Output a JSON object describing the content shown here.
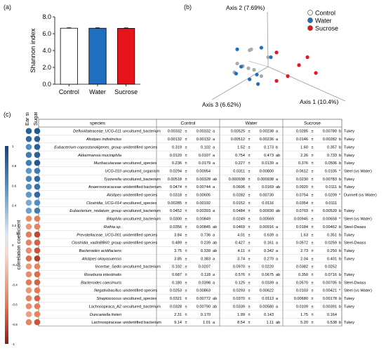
{
  "panels": {
    "a": "(a)",
    "b": "(b)",
    "c": "(c)"
  },
  "colors": {
    "control": "#ffffff",
    "water": "#1f6fc1",
    "sucrose": "#e8141c",
    "pcoa_control": "#aaaaaa"
  },
  "chart_data": [
    {
      "type": "bar",
      "title": "",
      "xlabel": "",
      "ylabel": "Shannon index",
      "categories": [
        "Control",
        "Water",
        "Sucrose"
      ],
      "values": [
        6.65,
        6.65,
        6.63
      ],
      "errors": [
        0.06,
        0.06,
        0.06
      ],
      "ylim": [
        0,
        8
      ],
      "yticks": [
        "0.0",
        "2.0",
        "4.0",
        "6.0",
        "8.0"
      ],
      "colors": [
        "#ffffff",
        "#1f6fc1",
        "#e8141c"
      ]
    },
    {
      "type": "scatter",
      "title": "",
      "axes": [
        "Axis 1 (10.4%)",
        "Axis 2 (7.69%)",
        "Axis 3 (6.62%)"
      ],
      "legend": {
        "position": "top-right",
        "items": [
          "Control",
          "Water",
          "Sucrose"
        ]
      },
      "series": [
        {
          "name": "Control",
          "color": "#aaaaaa",
          "points": [
            [
              -0.3,
              0.55
            ],
            [
              -0.33,
              0.52
            ],
            [
              -0.55,
              0.1
            ],
            [
              -0.45,
              0.02
            ],
            [
              -0.35,
              -0.05
            ],
            [
              -0.25,
              -0.1
            ],
            [
              -0.6,
              -0.18
            ],
            [
              -0.12,
              -0.3
            ],
            [
              0.0,
              0.3
            ]
          ]
        },
        {
          "name": "Water",
          "color": "#1f6fc1",
          "points": [
            [
              -0.55,
              0.55
            ],
            [
              -0.12,
              0.6
            ],
            [
              -0.2,
              -0.25
            ],
            [
              -0.33,
              -0.4
            ],
            [
              -0.18,
              -0.55
            ],
            [
              -0.48,
              0.0
            ],
            [
              -0.57,
              -0.22
            ],
            [
              0.05,
              0.3
            ]
          ]
        },
        {
          "name": "Sucrose",
          "color": "#e8141c",
          "points": [
            [
              0.15,
              0.45
            ],
            [
              0.7,
              0.3
            ],
            [
              0.55,
              0.05
            ],
            [
              0.85,
              -0.2
            ],
            [
              0.35,
              -0.3
            ],
            [
              0.15,
              -0.45
            ]
          ]
        }
      ]
    },
    {
      "type": "table",
      "colorbar": {
        "title": "correlation coefficient",
        "ticks": [
          "1",
          "0.8",
          "0.6",
          "0.4",
          "0.2",
          "0",
          "-0.2",
          "-0.4",
          "-0.6",
          "-0.8",
          "-1"
        ],
        "range": [
          -1,
          1
        ]
      },
      "corr_columns": [
        "Ear swelling",
        "Sugar intake"
      ],
      "headers": [
        "species",
        "Control",
        "Water",
        "Sucrose"
      ],
      "rows": [
        {
          "name": "Defluviitaleaceae_UCG-011",
          "italic": true,
          "suffix": "uncultured_bacterium",
          "c": [
            "0.00332",
            "0.00332",
            "a"
          ],
          "w": [
            "0.00525",
            "0.00238",
            "a"
          ],
          "s": [
            "0.0285",
            "0.00780",
            "b"
          ],
          "test": "Tukey",
          "corr": [
            0.85,
            0.9
          ]
        },
        {
          "name": "Alistipes indistinctus",
          "italic": true,
          "suffix": "",
          "c": [
            "0.00132",
            "0.00132",
            "a"
          ],
          "w": [
            "0.00512",
            "0.00236",
            "a"
          ],
          "s": [
            "0.0146",
            "0.00282",
            "b"
          ],
          "test": "Tukey",
          "corr": [
            0.8,
            0.85
          ]
        },
        {
          "name": "Eubacterium coprostanoligenes_group",
          "italic": true,
          "suffix": "unidentified species",
          "c": [
            "0.319",
            "0.102",
            "a"
          ],
          "w": [
            "1.52",
            "0.173",
            "b"
          ],
          "s": [
            "1.60",
            "0.357",
            "b"
          ],
          "test": "Tukey",
          "corr": [
            0.6,
            0.85
          ]
        },
        {
          "name": "Akkermansia muciniphila",
          "italic": true,
          "suffix": "",
          "c": [
            "0.0120",
            "0.0107",
            "a"
          ],
          "w": [
            "0.754",
            "0.473",
            "ab"
          ],
          "s": [
            "2.26",
            "0.733",
            "b"
          ],
          "test": "Tukey",
          "corr": [
            0.7,
            0.85
          ]
        },
        {
          "name": "Muribaculaceae",
          "italic": true,
          "suffix": "uncultured_species",
          "c": [
            "0.236",
            "0.0179",
            "a"
          ],
          "w": [
            "0.227",
            "0.0139",
            "a"
          ],
          "s": [
            "0.376",
            "0.0506",
            "b"
          ],
          "test": "Tukey",
          "corr": [
            0.7,
            0.9
          ]
        },
        {
          "name": "UCG-010",
          "italic": true,
          "suffix": "uncultured_organism",
          "c": [
            "0.0294",
            "0.00954",
            ""
          ],
          "w": [
            "0.0311",
            "0.00800",
            ""
          ],
          "s": [
            "0.0612",
            "0.0105",
            "*"
          ],
          "test": "Steel (vs Water)",
          "corr": [
            0.55,
            0.7
          ]
        },
        {
          "name": "Tyzzerella",
          "italic": true,
          "suffix": "uncultured_bacterium",
          "c": [
            "0.00518",
            "0.00328",
            "ab"
          ],
          "w": [
            "0.000938",
            "0.000938",
            "a"
          ],
          "s": [
            "0.0230",
            "0.00783",
            "b"
          ],
          "test": "Tukey",
          "corr": [
            0.65,
            0.8
          ]
        },
        {
          "name": "Anaerovoracaceae",
          "italic": false,
          "suffix": "unidentified bacterium",
          "c": [
            "0.0474",
            "0.00744",
            "a"
          ],
          "w": [
            "0.0606",
            "0.0169",
            "ab"
          ],
          "s": [
            "0.0920",
            "0.0111",
            "b"
          ],
          "test": "Tukey",
          "corr": [
            0.6,
            0.75
          ]
        },
        {
          "name": "Alistipes",
          "italic": true,
          "suffix": "unidentified species",
          "c": [
            "0.0318",
            "0.00605",
            ""
          ],
          "w": [
            "0.0282",
            "0.00730",
            ""
          ],
          "s": [
            "0.0754",
            "0.0209",
            "*"
          ],
          "test": "Dunnett (vs Water)",
          "corr": [
            0.55,
            0.8
          ]
        },
        {
          "name": "Clostridia_UCG-014",
          "italic": true,
          "suffix": "uncultured_species",
          "c": [
            "0.00285",
            "0.00192",
            ""
          ],
          "w": [
            "0.0152",
            "0.0116",
            ""
          ],
          "s": [
            "0.0354",
            "0.0111",
            ""
          ],
          "test": "",
          "corr": [
            0.45,
            0.6
          ]
        },
        {
          "name": "Eubacterium_nodatum_group",
          "italic": true,
          "suffix": "uncultured_bacterium",
          "c": [
            "0.0452",
            "0.00393",
            "a"
          ],
          "w": [
            "0.0484",
            "0.00930",
            "ab"
          ],
          "s": [
            "0.0703",
            "0.00520",
            "b"
          ],
          "test": "Tukey",
          "corr": [
            0.5,
            0.7
          ]
        },
        {
          "name": "Bilophila",
          "italic": true,
          "suffix": "uncultured_bacterium",
          "c": [
            "0.0300",
            "0.00849",
            ""
          ],
          "w": [
            "0.0249",
            "0.00569",
            ""
          ],
          "s": [
            "0.00945",
            "0.00658",
            "*"
          ],
          "test": "Steel (vs Water)",
          "corr": [
            -0.5,
            -0.6
          ]
        },
        {
          "name": "Rothia sp.",
          "italic": true,
          "suffix": "",
          "c": [
            "0.0356",
            "0.00845",
            "ab"
          ],
          "w": [
            "0.0469",
            "0.00916",
            "a"
          ],
          "s": [
            "0.0184",
            "0.00462",
            "b"
          ],
          "test": "Steel-Dwass",
          "corr": [
            -0.45,
            -0.55
          ]
        },
        {
          "name": "Prevotellaceae_UCG-001",
          "italic": true,
          "suffix": "unidentified species",
          "c": [
            "3.84",
            "0.736",
            "a"
          ],
          "w": [
            "4.01",
            "0.639",
            "a"
          ],
          "s": [
            "1.63",
            "0.351",
            "b"
          ],
          "test": "Tukey",
          "corr": [
            -0.6,
            -0.8
          ]
        },
        {
          "name": "Clostridia_vadinBB60_group",
          "italic": true,
          "suffix": "unidentified species",
          "c": [
            "0.489",
            "0.239",
            "ab"
          ],
          "w": [
            "0.427",
            "0.161",
            "a"
          ],
          "s": [
            "0.0572",
            "0.0259",
            "b"
          ],
          "test": "Steel-Dwass",
          "corr": [
            -0.55,
            -0.7
          ]
        },
        {
          "name": "Bacteroides acidifaciens",
          "italic": true,
          "suffix": "",
          "c": [
            "3.75",
            "0.339",
            "ab"
          ],
          "w": [
            "4.11",
            "0.342",
            "a"
          ],
          "s": [
            "2.73",
            "0.250",
            "b"
          ],
          "test": "Tukey",
          "corr": [
            -0.5,
            -0.75
          ]
        },
        {
          "name": "Alistipes okayasuensis",
          "italic": true,
          "suffix": "",
          "c": [
            "3.85",
            "0.383",
            "a"
          ],
          "w": [
            "3.74",
            "0.270",
            "a"
          ],
          "s": [
            "2.04",
            "0.401",
            "b"
          ],
          "test": "Tukey",
          "corr": [
            -0.65,
            -0.85
          ]
        },
        {
          "name": "Incertae_Sedis",
          "italic": true,
          "suffix": "uncultured_bacterium",
          "c": [
            "0.102",
            "0.0207",
            ""
          ],
          "w": [
            "0.0970",
            "0.0220",
            ""
          ],
          "s": [
            "0.0382",
            "0.0252",
            ""
          ],
          "test": "",
          "corr": [
            -0.45,
            -0.55
          ]
        },
        {
          "name": "Roseburia intestinalis",
          "italic": true,
          "suffix": "",
          "c": [
            "0.687",
            "0.118",
            "a"
          ],
          "w": [
            "0.576",
            "0.0675",
            "ab"
          ],
          "s": [
            "0.350",
            "0.0716",
            "b"
          ],
          "test": "Tukey",
          "corr": [
            -0.5,
            -0.65
          ]
        },
        {
          "name": "Bacteroides caecimuris",
          "italic": true,
          "suffix": "",
          "c": [
            "0.180",
            "0.0398",
            "a"
          ],
          "w": [
            "0.125",
            "0.0339",
            "a"
          ],
          "s": [
            "0.0570",
            "0.00705",
            "b"
          ],
          "test": "Steel-Dwass",
          "corr": [
            -0.6,
            -0.7
          ]
        },
        {
          "name": "Negativibacillus",
          "italic": true,
          "suffix": "unidentified species",
          "c": [
            "0.0253",
            "0.00863",
            ""
          ],
          "w": [
            "0.0293",
            "0.00622",
            ""
          ],
          "s": [
            "0.0103",
            "0.00421",
            "*"
          ],
          "test": "Steel (vs Water)",
          "corr": [
            -0.45,
            -0.6
          ]
        },
        {
          "name": "Streptococcus",
          "italic": true,
          "suffix": "uncultured_species",
          "c": [
            "0.0321",
            "0.00772",
            "ab"
          ],
          "w": [
            "0.0370",
            "0.0113",
            "a"
          ],
          "s": [
            "0.00680",
            "0.00178",
            "b"
          ],
          "test": "Tukey",
          "corr": [
            -0.55,
            -0.7
          ]
        },
        {
          "name": "Lachnospiraca_A2",
          "italic": false,
          "suffix": "uncultured_bacterium",
          "c": [
            "0.0328",
            "0.00790",
            "ab"
          ],
          "w": [
            "0.0339",
            "0.00580",
            "a"
          ],
          "s": [
            "0.0109",
            "0.00391",
            "b"
          ],
          "test": "Tukey",
          "corr": [
            -0.5,
            -0.6
          ]
        },
        {
          "name": "Duncaniella freteri",
          "italic": true,
          "suffix": "",
          "c": [
            "2.31",
            "0.170",
            ""
          ],
          "w": [
            "1.99",
            "0.143",
            ""
          ],
          "s": [
            "1.75",
            "0.164",
            ""
          ],
          "test": "",
          "corr": [
            -0.4,
            -0.55
          ]
        },
        {
          "name": "Lachnospiraceae",
          "italic": false,
          "suffix": "unidentified bacterium",
          "c": [
            "9.14",
            "1.01",
            "a"
          ],
          "w": [
            "8.54",
            "1.11",
            "ab"
          ],
          "s": [
            "5.20",
            "0.538",
            "b"
          ],
          "test": "Tukey",
          "corr": [
            -0.55,
            -0.75
          ]
        }
      ]
    }
  ]
}
